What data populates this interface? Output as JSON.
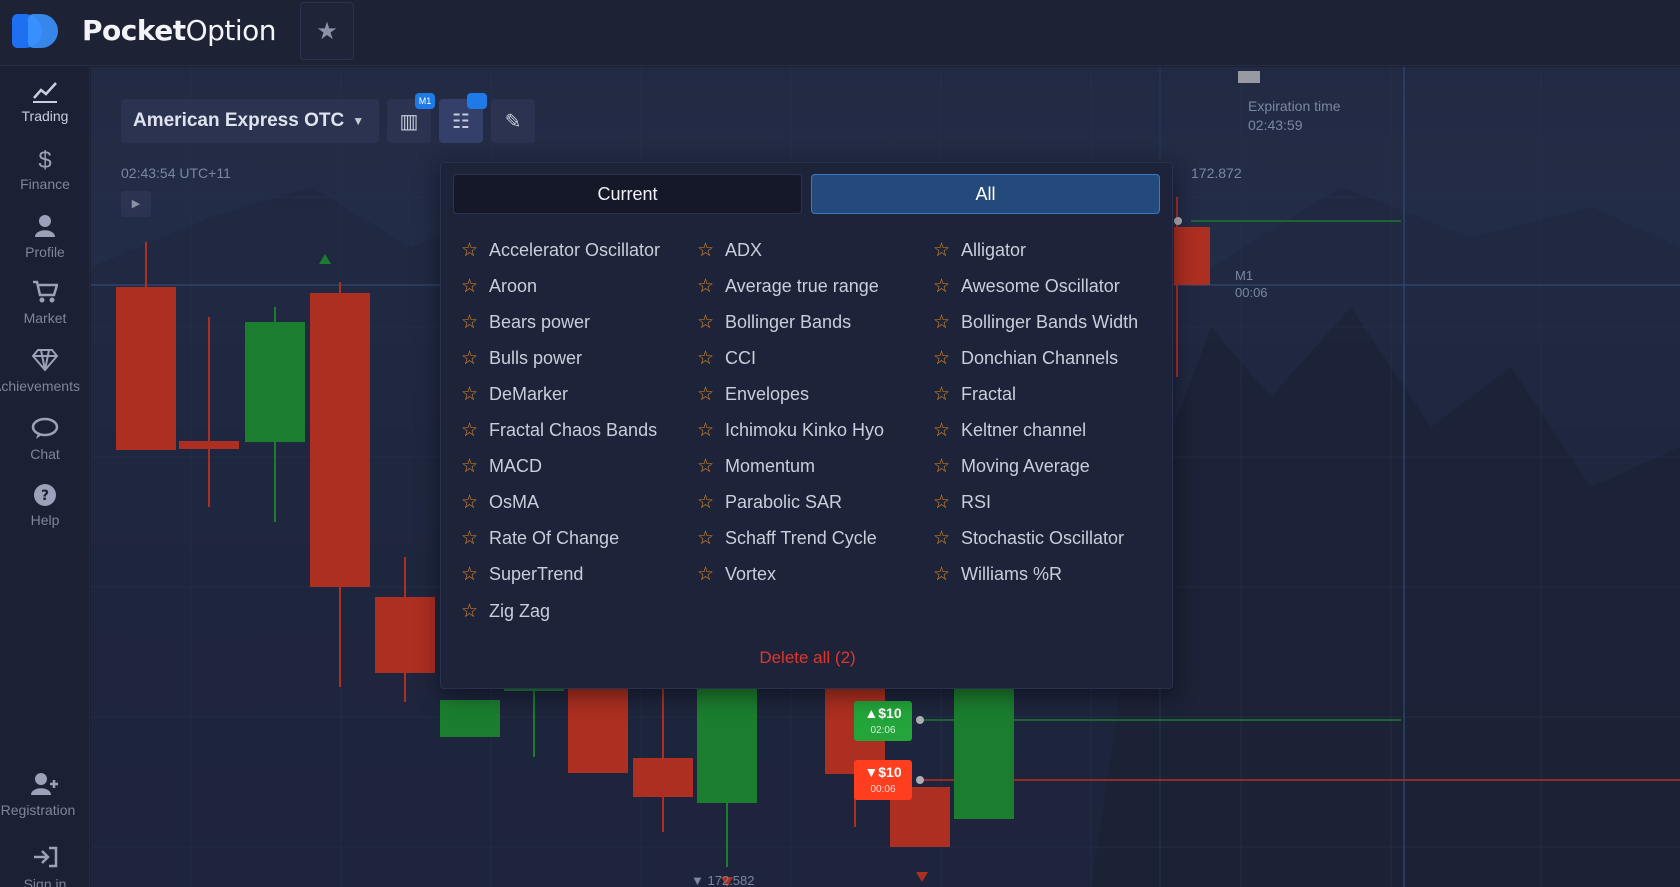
{
  "brand": {
    "name_bold": "Pocket",
    "name_light": "Option"
  },
  "topbar": {
    "favorites_icon": "star-icon"
  },
  "sidebar": {
    "items": [
      {
        "label": "Trading",
        "icon": "chart-line-icon"
      },
      {
        "label": "Finance",
        "icon": "dollar-icon"
      },
      {
        "label": "Profile",
        "icon": "user-icon"
      },
      {
        "label": "Market",
        "icon": "cart-icon"
      },
      {
        "label": "Achievements",
        "icon": "diamond-icon"
      },
      {
        "label": "Chat",
        "icon": "chat-icon"
      },
      {
        "label": "Help",
        "icon": "help-icon"
      },
      {
        "label": "Registration",
        "icon": "user-add-icon"
      },
      {
        "label": "Sign in",
        "icon": "login-icon"
      }
    ]
  },
  "chart": {
    "asset": "American Express OTC",
    "time": "02:43:54 UTC+11",
    "price_top": "172.872",
    "price_bottom": "172.582",
    "expiration": {
      "label": "Expiration time",
      "value": "02:43:59"
    },
    "timeframe": {
      "label": "M1",
      "value": "00:06"
    },
    "trades": [
      {
        "direction": "up",
        "amount": "$10",
        "time": "02:06"
      },
      {
        "direction": "down",
        "amount": "$10",
        "time": "00:06"
      }
    ],
    "colors": {
      "up": "#1fb534",
      "down": "#ff3d1f"
    }
  },
  "indicators_panel": {
    "tabs": {
      "current": "Current",
      "all": "All"
    },
    "active_tab": "All",
    "items": [
      "Accelerator Oscillator",
      "ADX",
      "Alligator",
      "Aroon",
      "Average true range",
      "Awesome Oscillator",
      "Bears power",
      "Bollinger Bands",
      "Bollinger Bands Width",
      "Bulls power",
      "CCI",
      "Donchian Channels",
      "DeMarker",
      "Envelopes",
      "Fractal",
      "Fractal Chaos Bands",
      "Ichimoku Kinko Hyo",
      "Keltner channel",
      "MACD",
      "Momentum",
      "Moving Average",
      "OsMA",
      "Parabolic SAR",
      "RSI",
      "Rate Of Change",
      "Schaff Trend Cycle",
      "Stochastic Oscillator",
      "SuperTrend",
      "Vortex",
      "Williams %R",
      "Zig Zag"
    ],
    "delete_all": "Delete all (2)"
  }
}
